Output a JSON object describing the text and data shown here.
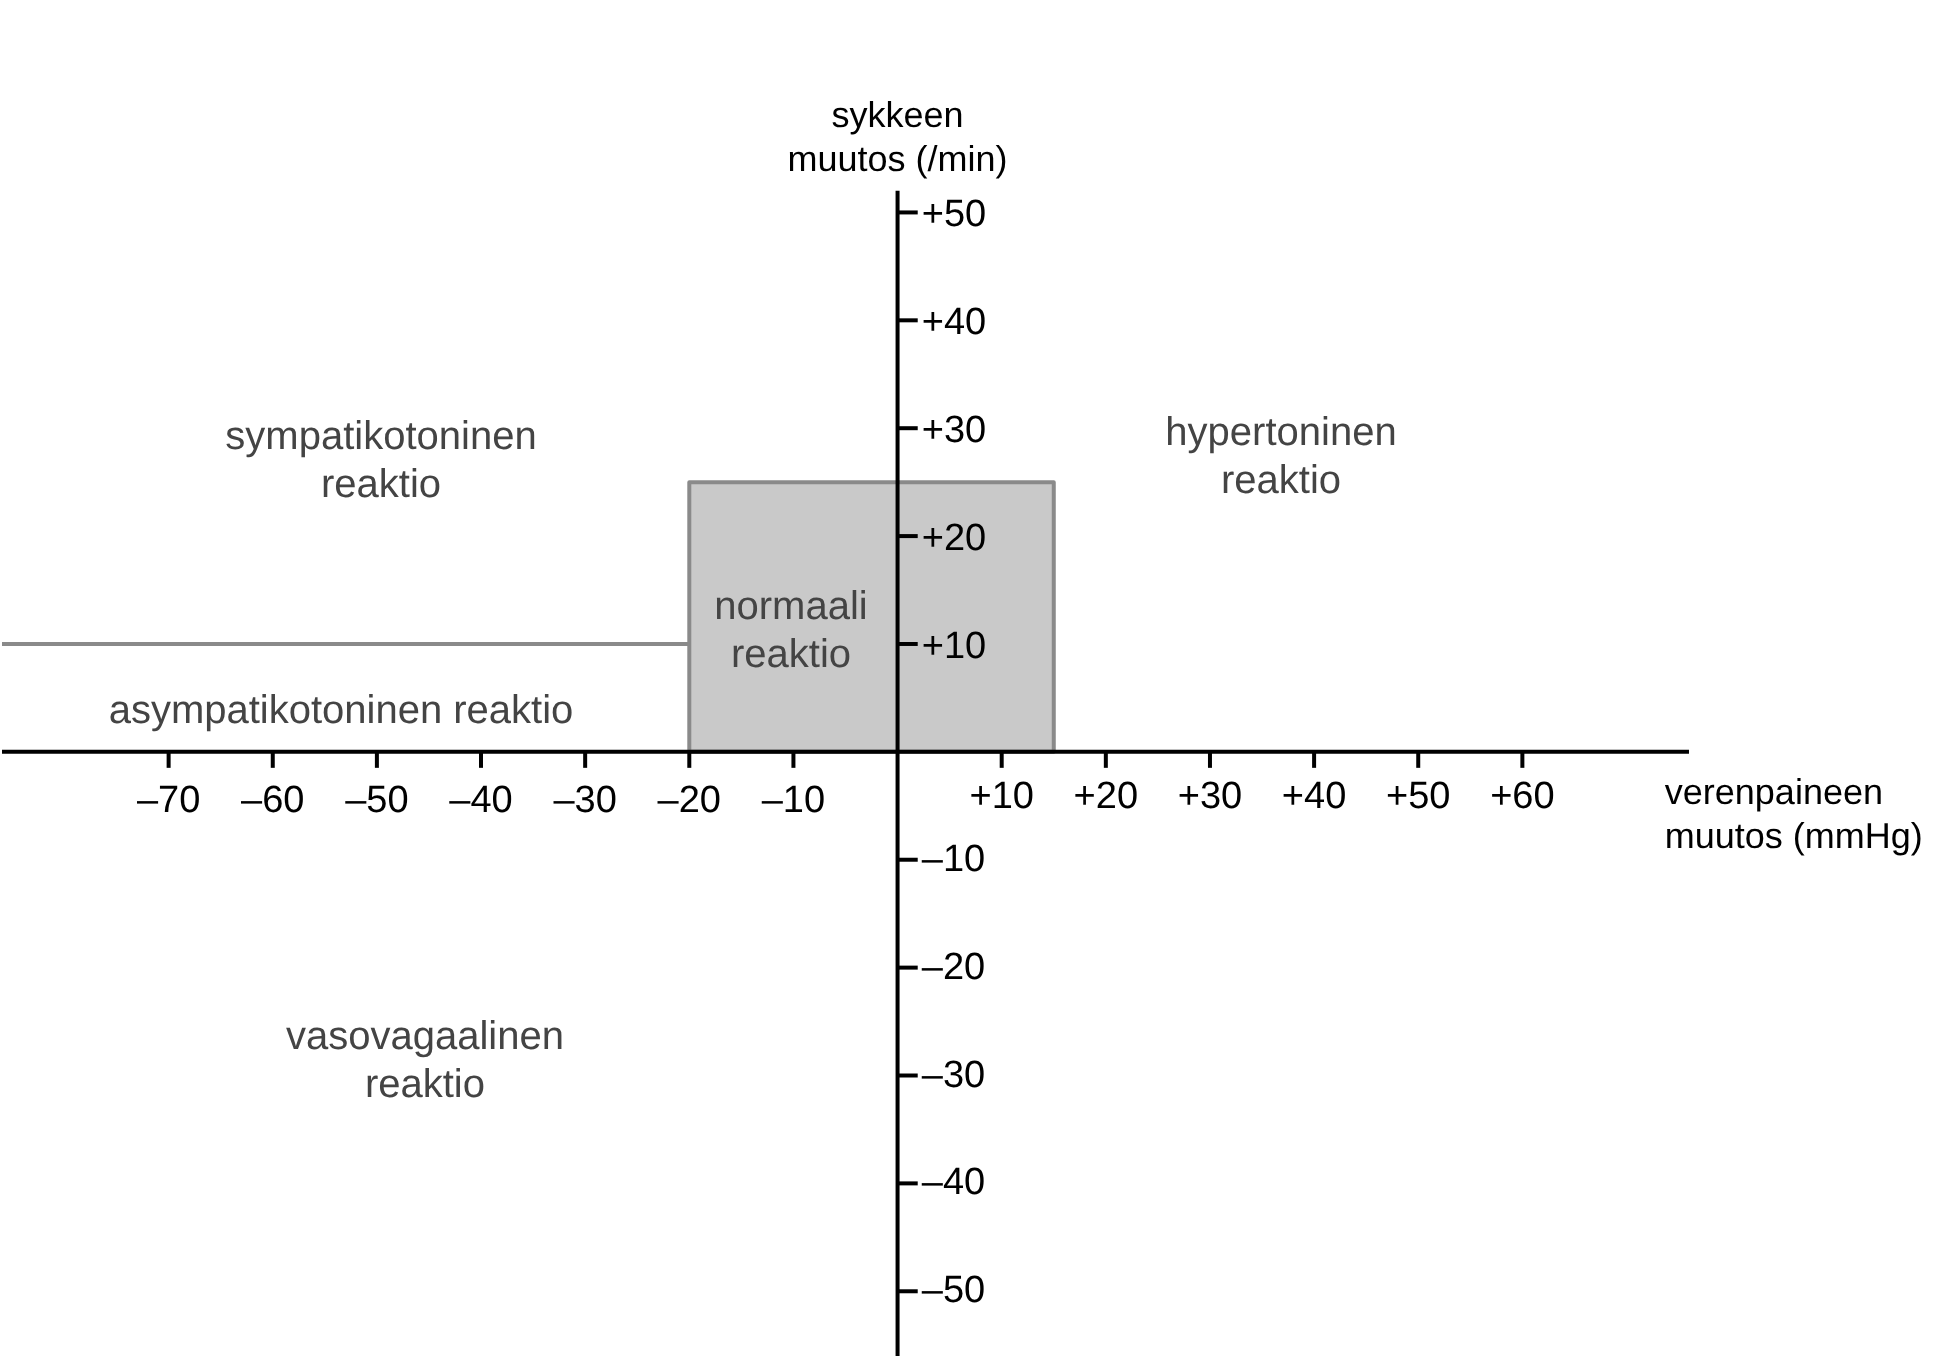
{
  "chart_data": {
    "type": "area",
    "xlabel": "verenpaineen\nmuutos (mmHg)",
    "ylabel": "sykkeen\nmuutos (/min)",
    "xlim": [
      -86,
      76
    ],
    "ylim": [
      -56,
      52
    ],
    "xticks": [
      {
        "value": -70,
        "label": "–70"
      },
      {
        "value": -60,
        "label": "–60"
      },
      {
        "value": -50,
        "label": "–50"
      },
      {
        "value": -40,
        "label": "–40"
      },
      {
        "value": -30,
        "label": "–30"
      },
      {
        "value": -20,
        "label": "–20"
      },
      {
        "value": -10,
        "label": "–10"
      },
      {
        "value": 10,
        "label": "+10"
      },
      {
        "value": 20,
        "label": "+20"
      },
      {
        "value": 30,
        "label": "+30"
      },
      {
        "value": 40,
        "label": "+40"
      },
      {
        "value": 50,
        "label": "+50"
      },
      {
        "value": 60,
        "label": "+60"
      }
    ],
    "yticks": [
      {
        "value": 50,
        "label": "+50"
      },
      {
        "value": 40,
        "label": "+40"
      },
      {
        "value": 30,
        "label": "+30"
      },
      {
        "value": 20,
        "label": "+20"
      },
      {
        "value": 10,
        "label": "+10"
      },
      {
        "value": -10,
        "label": "–10"
      },
      {
        "value": -20,
        "label": "–20"
      },
      {
        "value": -30,
        "label": "–30"
      },
      {
        "value": -40,
        "label": "–40"
      },
      {
        "value": -50,
        "label": "–50"
      }
    ],
    "series": [
      {
        "color": "#c9c9c9",
        "x": [
          -20,
          15
        ],
        "values": [
          25,
          25
        ]
      },
      {
        "type": "line",
        "color": "#8a8a8a",
        "x": [
          -86,
          -20
        ],
        "values": [
          10,
          10
        ]
      }
    ],
    "annotations": [
      "sympatikotoninen\nreaktio",
      "hypertoninen\nreaktio",
      "normaali\nreaktio",
      "asympatikotoninen reaktio",
      "vasovagaalinen\nreaktio"
    ],
    "grid": false
  }
}
